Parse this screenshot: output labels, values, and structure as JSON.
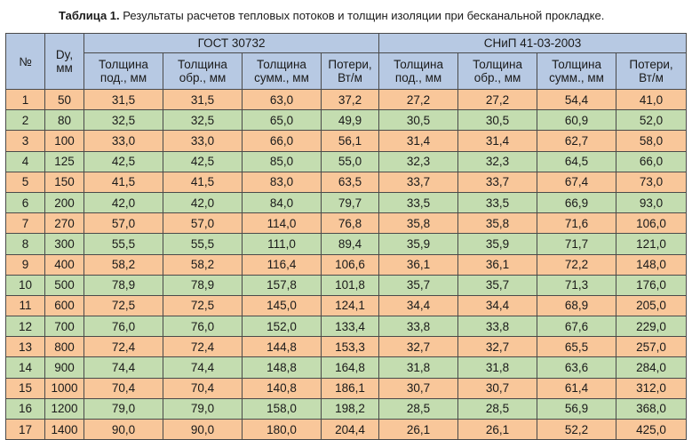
{
  "caption": {
    "prefix": "Таблица 1.",
    "text": "Результаты расчетов тепловых потоков и толщин изоляции при бесканальной прокладке."
  },
  "header": {
    "col_num": "№",
    "col_dy_1": "Dy,",
    "col_dy_2": "мм",
    "group1": "ГОСТ 30732",
    "group2": "СНиП 41-03-2003",
    "sub": [
      [
        "Толщина",
        "под., мм"
      ],
      [
        "Толщина",
        "обр., мм"
      ],
      [
        "Толщина",
        "сумм., мм"
      ],
      [
        "Потери,",
        "Вт/м"
      ],
      [
        "Толщина",
        "под., мм"
      ],
      [
        "Толщина",
        "обр., мм"
      ],
      [
        "Толщина",
        "сумм., мм"
      ],
      [
        "Потери,",
        "Вт/м"
      ]
    ]
  },
  "rows": [
    [
      "1",
      "50",
      "31,5",
      "31,5",
      "63,0",
      "37,2",
      "27,2",
      "27,2",
      "54,4",
      "41,0"
    ],
    [
      "2",
      "80",
      "32,5",
      "32,5",
      "65,0",
      "49,9",
      "30,5",
      "30,5",
      "60,9",
      "52,0"
    ],
    [
      "3",
      "100",
      "33,0",
      "33,0",
      "66,0",
      "56,1",
      "31,4",
      "31,4",
      "62,7",
      "58,0"
    ],
    [
      "4",
      "125",
      "42,5",
      "42,5",
      "85,0",
      "55,0",
      "32,3",
      "32,3",
      "64,5",
      "66,0"
    ],
    [
      "5",
      "150",
      "41,5",
      "41,5",
      "83,0",
      "63,5",
      "33,7",
      "33,7",
      "67,4",
      "73,0"
    ],
    [
      "6",
      "200",
      "42,0",
      "42,0",
      "84,0",
      "79,7",
      "33,5",
      "33,5",
      "66,9",
      "93,0"
    ],
    [
      "7",
      "270",
      "57,0",
      "57,0",
      "114,0",
      "76,8",
      "35,8",
      "35,8",
      "71,6",
      "106,0"
    ],
    [
      "8",
      "300",
      "55,5",
      "55,5",
      "111,0",
      "89,4",
      "35,9",
      "35,9",
      "71,7",
      "121,0"
    ],
    [
      "9",
      "400",
      "58,2",
      "58,2",
      "116,4",
      "106,6",
      "36,1",
      "36,1",
      "72,2",
      "148,0"
    ],
    [
      "10",
      "500",
      "78,9",
      "78,9",
      "157,8",
      "101,8",
      "35,7",
      "35,7",
      "71,3",
      "176,0"
    ],
    [
      "11",
      "600",
      "72,5",
      "72,5",
      "145,0",
      "124,1",
      "34,4",
      "34,4",
      "68,9",
      "205,0"
    ],
    [
      "12",
      "700",
      "76,0",
      "76,0",
      "152,0",
      "133,4",
      "33,8",
      "33,8",
      "67,6",
      "229,0"
    ],
    [
      "13",
      "800",
      "72,4",
      "72,4",
      "144,8",
      "153,3",
      "32,7",
      "32,7",
      "65,5",
      "257,0"
    ],
    [
      "14",
      "900",
      "74,4",
      "74,4",
      "148,8",
      "164,8",
      "31,8",
      "31,8",
      "63,6",
      "284,0"
    ],
    [
      "15",
      "1000",
      "70,4",
      "70,4",
      "140,8",
      "186,1",
      "30,7",
      "30,7",
      "61,4",
      "312,0"
    ],
    [
      "16",
      "1200",
      "79,0",
      "79,0",
      "158,0",
      "198,2",
      "28,5",
      "28,5",
      "56,9",
      "368,0"
    ],
    [
      "17",
      "1400",
      "90,0",
      "90,0",
      "180,0",
      "204,4",
      "26,1",
      "26,1",
      "52,2",
      "425,0"
    ]
  ],
  "colors": {
    "header_bg": "#b7c9e3",
    "row_odd_bg": "#f9c79a",
    "row_even_bg": "#c4ddb0",
    "border": "#4a4a4a"
  }
}
